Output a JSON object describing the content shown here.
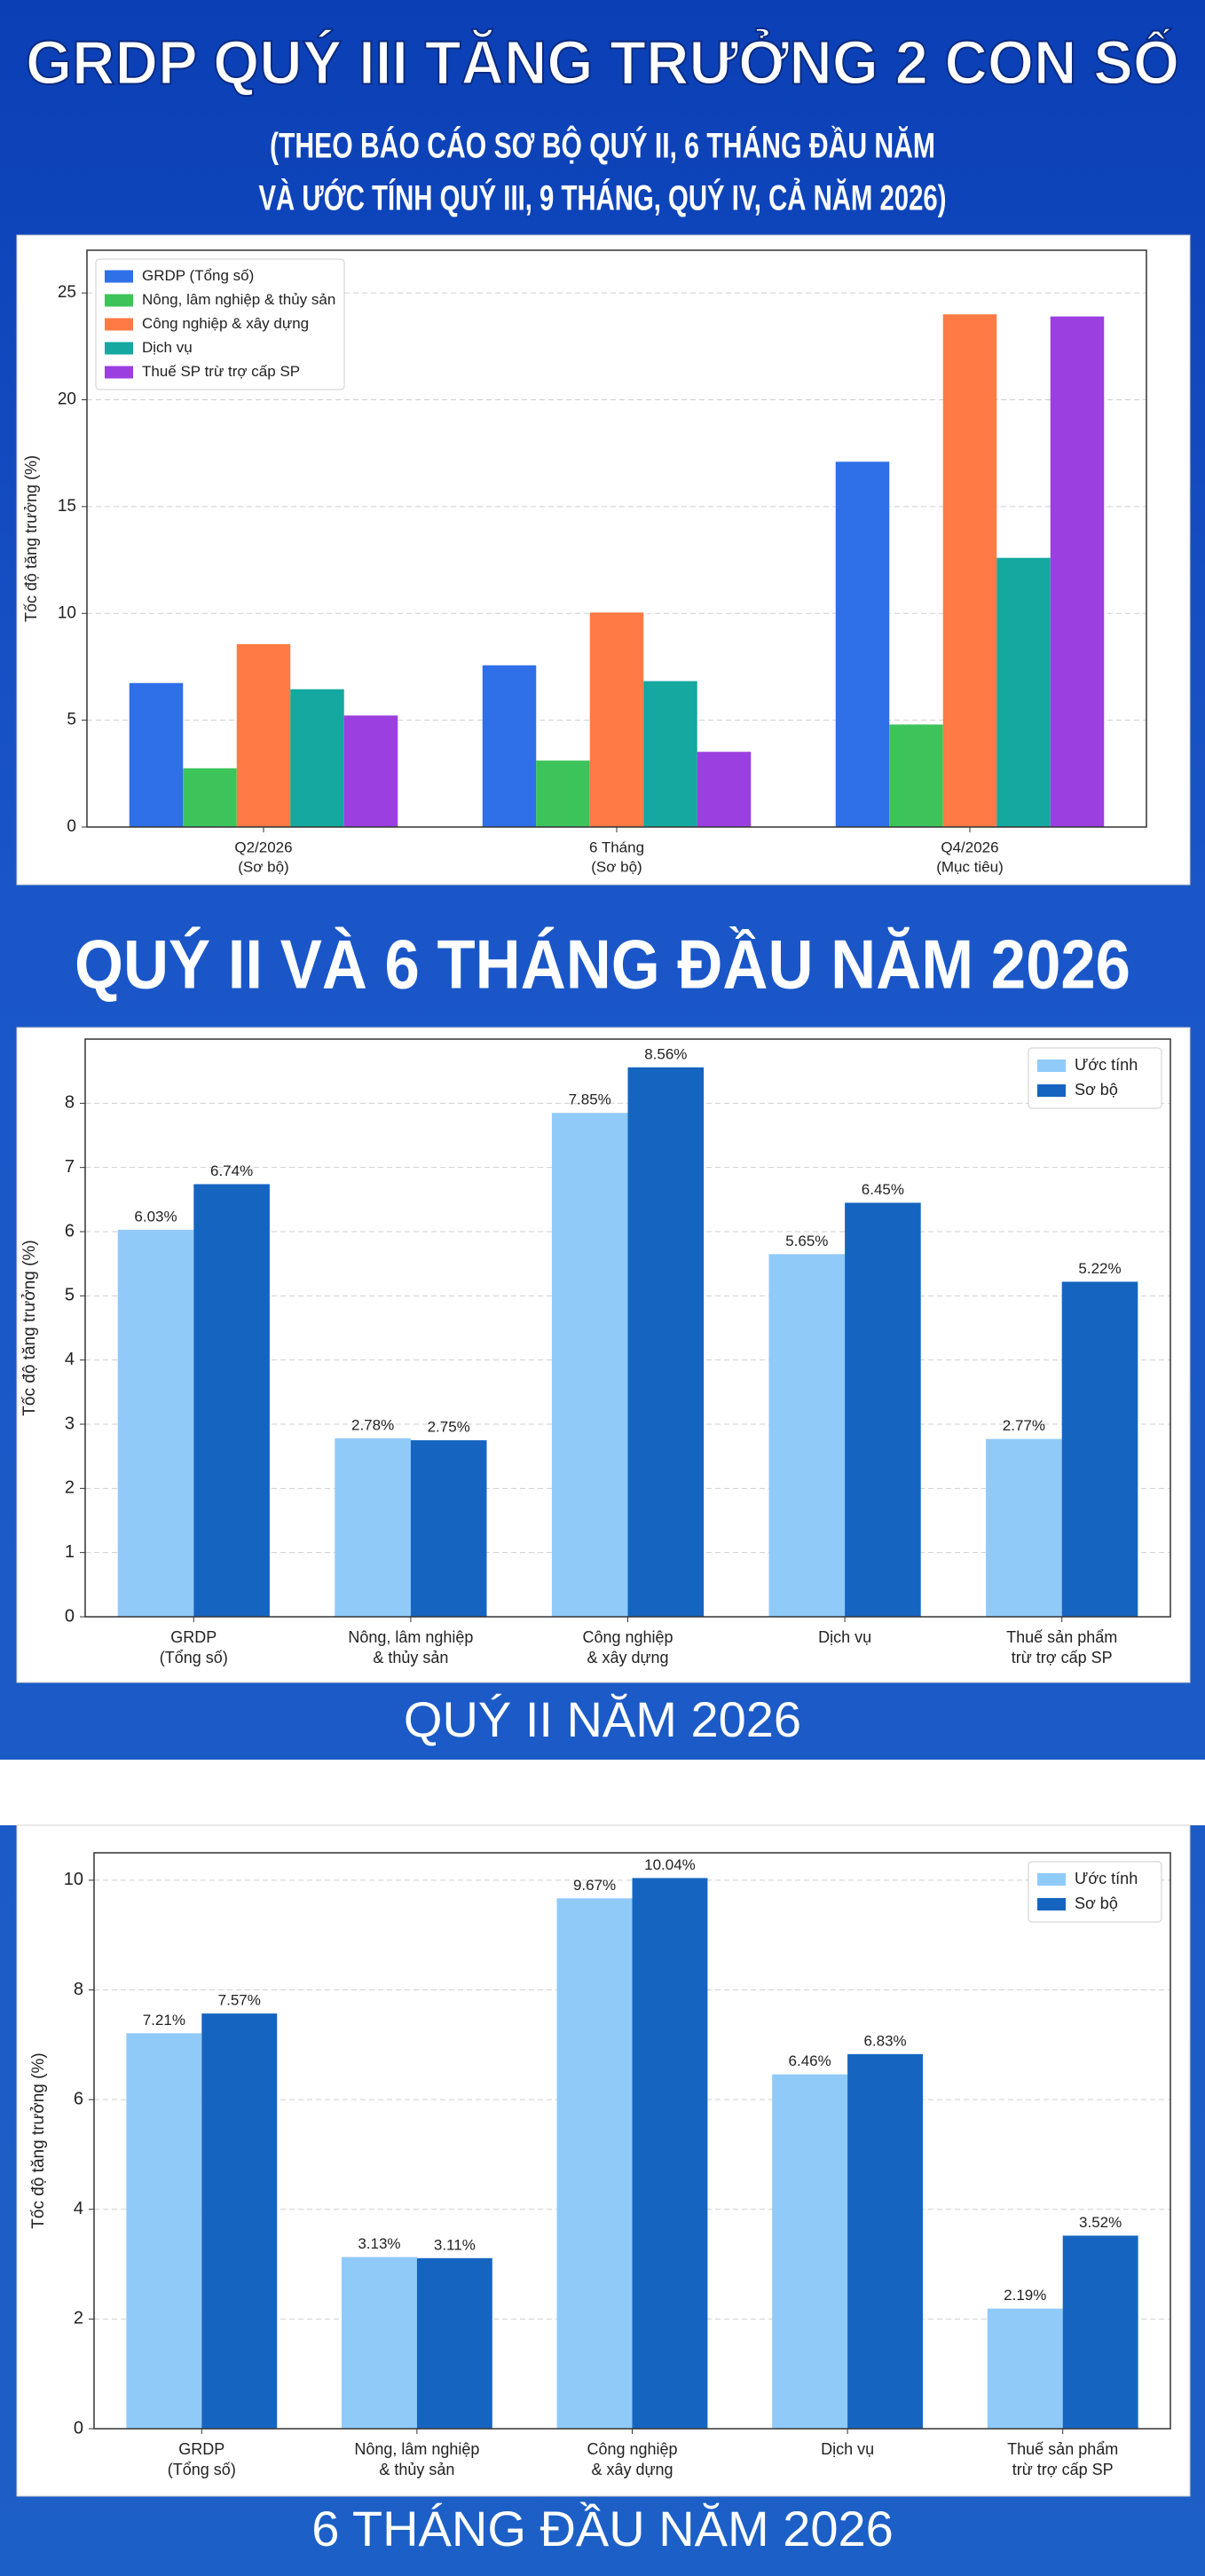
{
  "header": {
    "title": "GRDP QUÝ III TĂNG TRƯỞNG 2 CON SỐ",
    "subtitle": [
      "(THEO BÁO CÁO SƠ BỘ QUÝ II, 6 THÁNG ĐẦU NĂM",
      "VÀ ƯỚC TÍNH QUÝ III, 9 THÁNG, QUÝ IV, CẢ NĂM 2026)"
    ]
  },
  "section_heading": "QUÝ II VÀ 6 THÁNG ĐẦU NĂM 2026",
  "chart_data": [
    {
      "type": "bar",
      "ylabel": "Tốc độ tăng trưởng (%)",
      "categories": [
        [
          "Q2/2026",
          "(Sơ bộ)"
        ],
        [
          "6 Tháng",
          "(Sơ bộ)"
        ],
        [
          "Q4/2026",
          "(Mục tiêu)"
        ]
      ],
      "series": [
        {
          "name": "GRDP (Tổng số)",
          "color": "#2f6fe8",
          "values": [
            6.74,
            7.57,
            17.1
          ]
        },
        {
          "name": "Nông, lâm nghiệp & thủy sản",
          "color": "#3cc45a",
          "values": [
            2.75,
            3.11,
            4.8
          ]
        },
        {
          "name": "Công nghiệp & xây dựng",
          "color": "#ff7a45",
          "values": [
            8.56,
            10.04,
            24.0
          ]
        },
        {
          "name": "Dịch vụ",
          "color": "#14a8a0",
          "values": [
            6.45,
            6.83,
            12.6
          ]
        },
        {
          "name": "Thuế SP trừ trợ cấp SP",
          "color": "#9b3fe0",
          "values": [
            5.22,
            3.52,
            23.9
          ]
        }
      ],
      "ylim": [
        0,
        27
      ],
      "yticks": [
        0,
        5,
        10,
        15,
        20,
        25
      ],
      "grid": true,
      "legend": "upper-left"
    },
    {
      "type": "bar",
      "ylabel": "Tốc độ tăng trưởng (%)",
      "caption": "QUÝ II NĂM 2026",
      "categories": [
        [
          "GRDP",
          "(Tổng số)"
        ],
        [
          "Nông, lâm nghiệp",
          "& thủy sản"
        ],
        [
          "Công nghiệp",
          "& xây dựng"
        ],
        [
          "Dịch vụ"
        ],
        [
          "Thuế sản phẩm",
          "trừ trợ cấp SP"
        ]
      ],
      "series": [
        {
          "name": "Ước tính",
          "color": "#90caf9",
          "values": [
            6.03,
            2.78,
            7.85,
            5.65,
            2.77
          ],
          "value_labels": [
            "6.03%",
            "2.78%",
            "7.85%",
            "5.65%",
            "2.77%"
          ]
        },
        {
          "name": "Sơ bộ",
          "color": "#1565c0",
          "values": [
            6.74,
            2.75,
            8.56,
            6.45,
            5.22
          ],
          "value_labels": [
            "6.74%",
            "2.75%",
            "8.56%",
            "6.45%",
            "5.22%"
          ]
        }
      ],
      "ylim": [
        0,
        9
      ],
      "yticks": [
        0,
        1,
        2,
        3,
        4,
        5,
        6,
        7,
        8
      ],
      "grid": true,
      "legend": "upper-right"
    },
    {
      "type": "bar",
      "ylabel": "Tốc độ tăng trưởng (%)",
      "caption": "6 THÁNG ĐẦU NĂM 2026",
      "categories": [
        [
          "GRDP",
          "(Tổng số)"
        ],
        [
          "Nông, lâm nghiệp",
          "& thủy sản"
        ],
        [
          "Công nghiệp",
          "& xây dựng"
        ],
        [
          "Dịch vụ"
        ],
        [
          "Thuế sản phẩm",
          "trừ trợ cấp SP"
        ]
      ],
      "series": [
        {
          "name": "Ước tính",
          "color": "#90caf9",
          "values": [
            7.21,
            3.13,
            9.67,
            6.46,
            2.19
          ],
          "value_labels": [
            "7.21%",
            "3.13%",
            "9.67%",
            "6.46%",
            "2.19%"
          ]
        },
        {
          "name": "Sơ bộ",
          "color": "#1565c0",
          "values": [
            7.57,
            3.11,
            10.04,
            6.83,
            3.52
          ],
          "value_labels": [
            "7.57%",
            "3.11%",
            "10.04%",
            "6.83%",
            "3.52%"
          ]
        }
      ],
      "ylim": [
        0,
        10.5
      ],
      "yticks": [
        0,
        2,
        4,
        6,
        8,
        10
      ],
      "grid": true,
      "legend": "upper-right"
    }
  ]
}
